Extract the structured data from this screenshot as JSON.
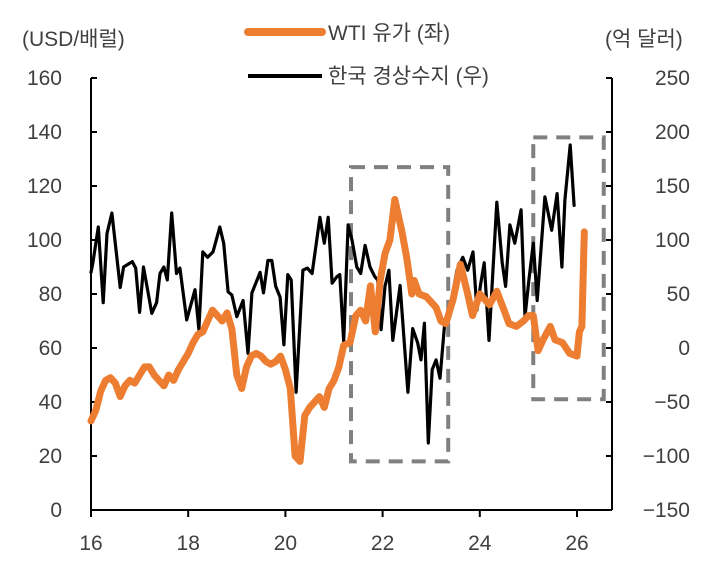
{
  "chart_data": {
    "type": "line",
    "left_axis_label": "(USD/배럴)",
    "right_axis_label": "(억 달러)",
    "xlim": [
      16,
      26.72
    ],
    "x_ticks": [
      16,
      18,
      20,
      22,
      24,
      26
    ],
    "left_ylim": [
      0,
      160
    ],
    "left_ticks": [
      0,
      20,
      40,
      60,
      80,
      100,
      120,
      140,
      160
    ],
    "right_ylim": [
      -150,
      250
    ],
    "right_ticks": [
      "-150",
      "-100",
      "-50",
      "0",
      "50",
      "100",
      "150",
      "200",
      "250"
    ],
    "grid": false,
    "legend_position": "top-center",
    "series": [
      {
        "name": "WTI 유가 (좌)",
        "axis": "left",
        "color": "#ED7D31",
        "x": [
          16.0,
          16.1,
          16.2,
          16.3,
          16.4,
          16.5,
          16.6,
          16.7,
          16.8,
          16.9,
          17.0,
          17.1,
          17.2,
          17.3,
          17.4,
          17.5,
          17.6,
          17.7,
          17.8,
          17.9,
          18.0,
          18.1,
          18.2,
          18.3,
          18.4,
          18.5,
          18.6,
          18.7,
          18.8,
          18.9,
          19.0,
          19.1,
          19.2,
          19.3,
          19.4,
          19.5,
          19.6,
          19.7,
          19.8,
          19.9,
          20.0,
          20.1,
          20.2,
          20.3,
          20.4,
          20.5,
          20.6,
          20.7,
          20.8,
          20.9,
          21.0,
          21.1,
          21.2,
          21.33,
          21.45,
          21.55,
          21.65,
          21.75,
          21.85,
          21.95,
          22.05,
          22.15,
          22.25,
          22.4,
          22.5,
          22.6,
          22.65,
          22.75,
          22.9,
          23.0,
          23.1,
          23.2,
          23.3,
          23.45,
          23.6,
          23.75,
          23.85,
          24.0,
          24.2,
          24.35,
          24.5,
          24.6,
          24.75,
          24.9,
          25.0,
          25.1,
          25.2,
          25.3,
          25.45,
          25.55,
          25.7,
          25.85,
          26.0,
          26.05,
          26.1,
          26.15
        ],
        "values": [
          33,
          37,
          44,
          48,
          49,
          47,
          42,
          46,
          48,
          47,
          50,
          53,
          53,
          50,
          48,
          46,
          50,
          48,
          52,
          55,
          58,
          62,
          65,
          66,
          70,
          74,
          72,
          70,
          73,
          67,
          50,
          45,
          53,
          57,
          58,
          57,
          55,
          54,
          55,
          57,
          52,
          45,
          20,
          18,
          35,
          38,
          40,
          42,
          38,
          45,
          48,
          53,
          61,
          62,
          72,
          74,
          70,
          83,
          66,
          85,
          95,
          100,
          115,
          103,
          93,
          80,
          85,
          80,
          79,
          77,
          75,
          70,
          69,
          78,
          91,
          80,
          72,
          80,
          76,
          81,
          74,
          69,
          68,
          70,
          72,
          72,
          59,
          63,
          68,
          63,
          62,
          58,
          57,
          66,
          68,
          103
        ]
      },
      {
        "name": "한국 경상수지 (우)",
        "axis": "right",
        "color": "#000000",
        "x": [
          16.0,
          16.04,
          16.15,
          16.25,
          16.33,
          16.43,
          16.6,
          16.67,
          16.85,
          16.92,
          17.0,
          17.08,
          17.25,
          17.35,
          17.42,
          17.5,
          17.57,
          17.66,
          17.76,
          17.83,
          17.97,
          18.14,
          18.22,
          18.3,
          18.4,
          18.51,
          18.65,
          18.73,
          18.82,
          18.9,
          19.0,
          19.13,
          19.23,
          19.31,
          19.48,
          19.55,
          19.64,
          19.72,
          19.8,
          19.89,
          19.97,
          20.05,
          20.12,
          20.22,
          20.36,
          20.45,
          20.55,
          20.71,
          20.8,
          20.88,
          20.96,
          21.06,
          21.12,
          21.2,
          21.29,
          21.37,
          21.47,
          21.55,
          21.64,
          21.74,
          21.84,
          21.9,
          21.97,
          22.05,
          22.13,
          22.21,
          22.36,
          22.52,
          22.62,
          22.72,
          22.79,
          22.86,
          22.94,
          23.02,
          23.1,
          23.18,
          23.28,
          23.39,
          23.53,
          23.65,
          23.75,
          23.86,
          23.94,
          24.02,
          24.09,
          24.19,
          24.35,
          24.46,
          24.53,
          24.62,
          24.72,
          24.85,
          24.93,
          25.01,
          25.1,
          25.18,
          25.34,
          25.48,
          25.59,
          25.69,
          25.75,
          25.86,
          25.94
        ],
        "values": [
          70,
          79,
          112,
          42,
          106,
          125,
          56,
          75,
          80,
          74,
          33,
          75,
          32,
          42,
          69,
          75,
          63,
          125,
          69,
          74,
          26,
          54,
          17,
          89,
          84,
          89,
          112,
          97,
          52,
          49,
          29,
          44,
          -5,
          51,
          70,
          51,
          81,
          81,
          57,
          47,
          3,
          68,
          63,
          -41,
          72,
          74,
          69,
          121,
          97,
          121,
          60,
          66,
          68,
          6,
          114,
          100,
          75,
          69,
          95,
          75,
          66,
          63,
          17,
          57,
          72,
          7,
          58,
          -41,
          18,
          5,
          -11,
          23,
          -88,
          -20,
          -11,
          -28,
          24,
          38,
          72,
          84,
          72,
          89,
          35,
          60,
          79,
          7,
          135,
          79,
          57,
          114,
          97,
          128,
          29,
          63,
          97,
          44,
          140,
          109,
          143,
          75,
          137,
          188,
          132
        ]
      }
    ],
    "annotations": [
      {
        "type": "dashed-box",
        "x": [
          21.35,
          23.35
        ],
        "left_y": [
          18,
          127
        ],
        "color": "#808080"
      },
      {
        "type": "dashed-box",
        "x": [
          25.1,
          26.55
        ],
        "left_y": [
          41,
          138
        ],
        "color": "#808080"
      }
    ]
  }
}
